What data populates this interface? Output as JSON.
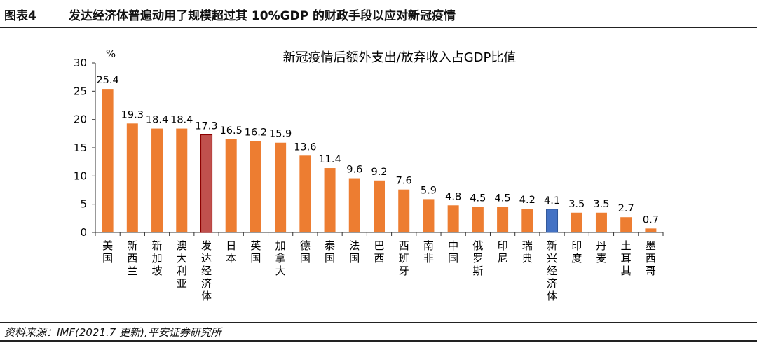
{
  "figure": {
    "number": "图表4",
    "title": "发达经济体普遍动用了规模超过其 10%GDP 的财政手段以应对新冠疫情",
    "source": "资料来源：IMF(2021.7 更新),平安证券研究所"
  },
  "colors": {
    "default_bar": "#ED7D31",
    "highlight_red": "#C0504D",
    "highlight_blue": "#4472C4"
  },
  "chart_data": {
    "type": "bar",
    "title": "新冠疫情后额外支出/放弃收入占GDP比值",
    "ylabel": "%",
    "xlabel": "",
    "ylim": [
      0,
      30
    ],
    "yticks": [
      0,
      5,
      10,
      15,
      20,
      25,
      30
    ],
    "grid": false,
    "legend": "none",
    "categories": [
      "美国",
      "新西兰",
      "新加坡",
      "澳大利亚",
      "发达经济体",
      "日本",
      "英国",
      "加拿大",
      "德国",
      "泰国",
      "法国",
      "巴西",
      "西班牙",
      "南非",
      "中国",
      "俄罗斯",
      "印尼",
      "瑞典",
      "新兴经济体",
      "印度",
      "丹麦",
      "土耳其",
      "墨西哥"
    ],
    "values": [
      25.4,
      19.3,
      18.4,
      18.4,
      17.3,
      16.5,
      16.2,
      15.9,
      13.6,
      11.4,
      9.6,
      9.2,
      7.6,
      5.9,
      4.8,
      4.5,
      4.5,
      4.2,
      4.1,
      3.5,
      3.5,
      2.7,
      0.7
    ],
    "value_labels": [
      "25.4",
      "19.3",
      "18.4",
      "18.4",
      "17.3",
      "16.5",
      "16.2",
      "15.9",
      "13.6",
      "11.4",
      "9.6",
      "9.2",
      "7.6",
      "5.9",
      "4.8",
      "4.5",
      "4.5",
      "4.2",
      "4.1",
      "3.5",
      "3.5",
      "2.7",
      "0.7"
    ],
    "highlight": {
      "发达经济体": "#C0504D",
      "新兴经济体": "#4472C4"
    }
  }
}
